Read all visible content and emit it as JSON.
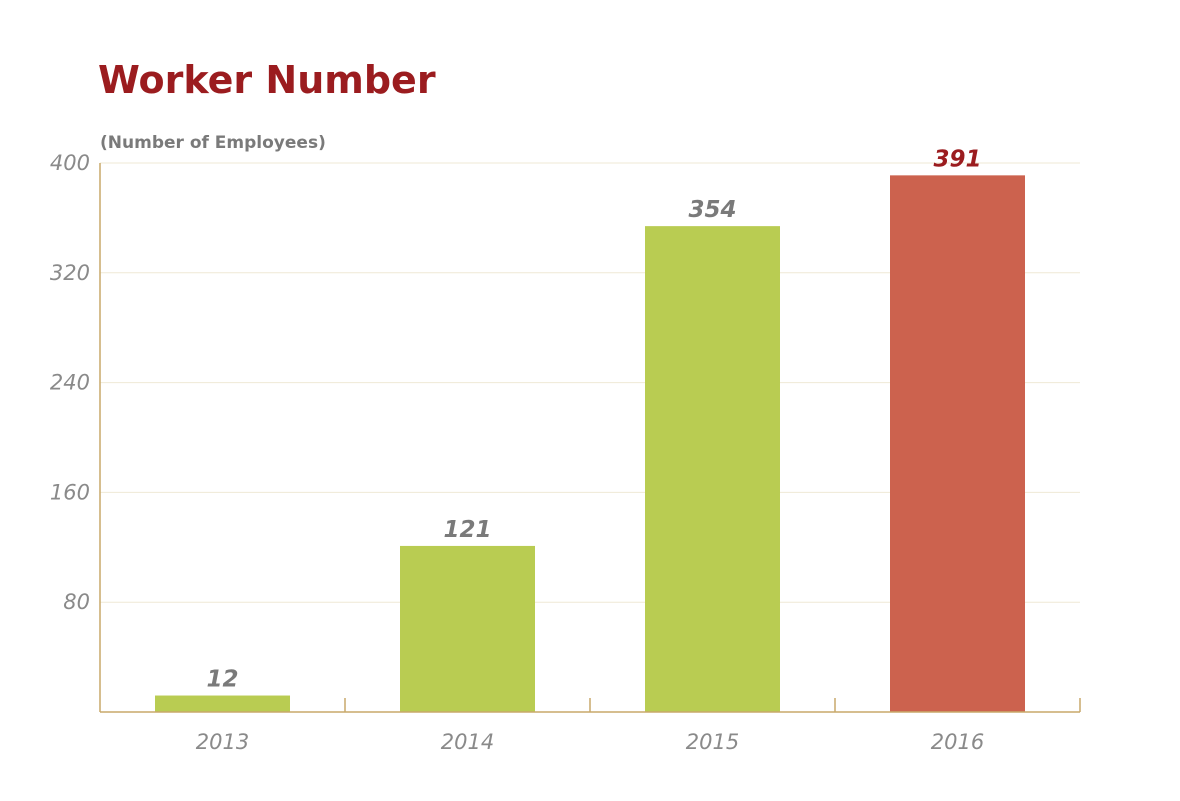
{
  "chart_data": {
    "type": "bar",
    "title": "Worker Number",
    "ylabel": "(Number of Employees)",
    "xlabel": "",
    "categories": [
      "2013",
      "2014",
      "2015",
      "2016"
    ],
    "values": [
      12,
      121,
      354,
      391
    ],
    "value_labels": [
      "12",
      "121",
      "354",
      "391"
    ],
    "ylim": [
      0,
      400
    ],
    "yticks": [
      80,
      160,
      240,
      320,
      400
    ],
    "ytick_labels": [
      "80",
      "160",
      "240",
      "320",
      "400"
    ],
    "grid": true,
    "bar_colors": [
      "#b9cc52",
      "#b9cc52",
      "#b9cc52",
      "#cc624e"
    ],
    "label_colors": [
      "#7a7a7a",
      "#7a7a7a",
      "#7a7a7a",
      "#9b1c1f"
    ],
    "grid_color": "#efe9d6",
    "axis_color": "#c8a96a",
    "title_color": "#9b1c1f"
  }
}
